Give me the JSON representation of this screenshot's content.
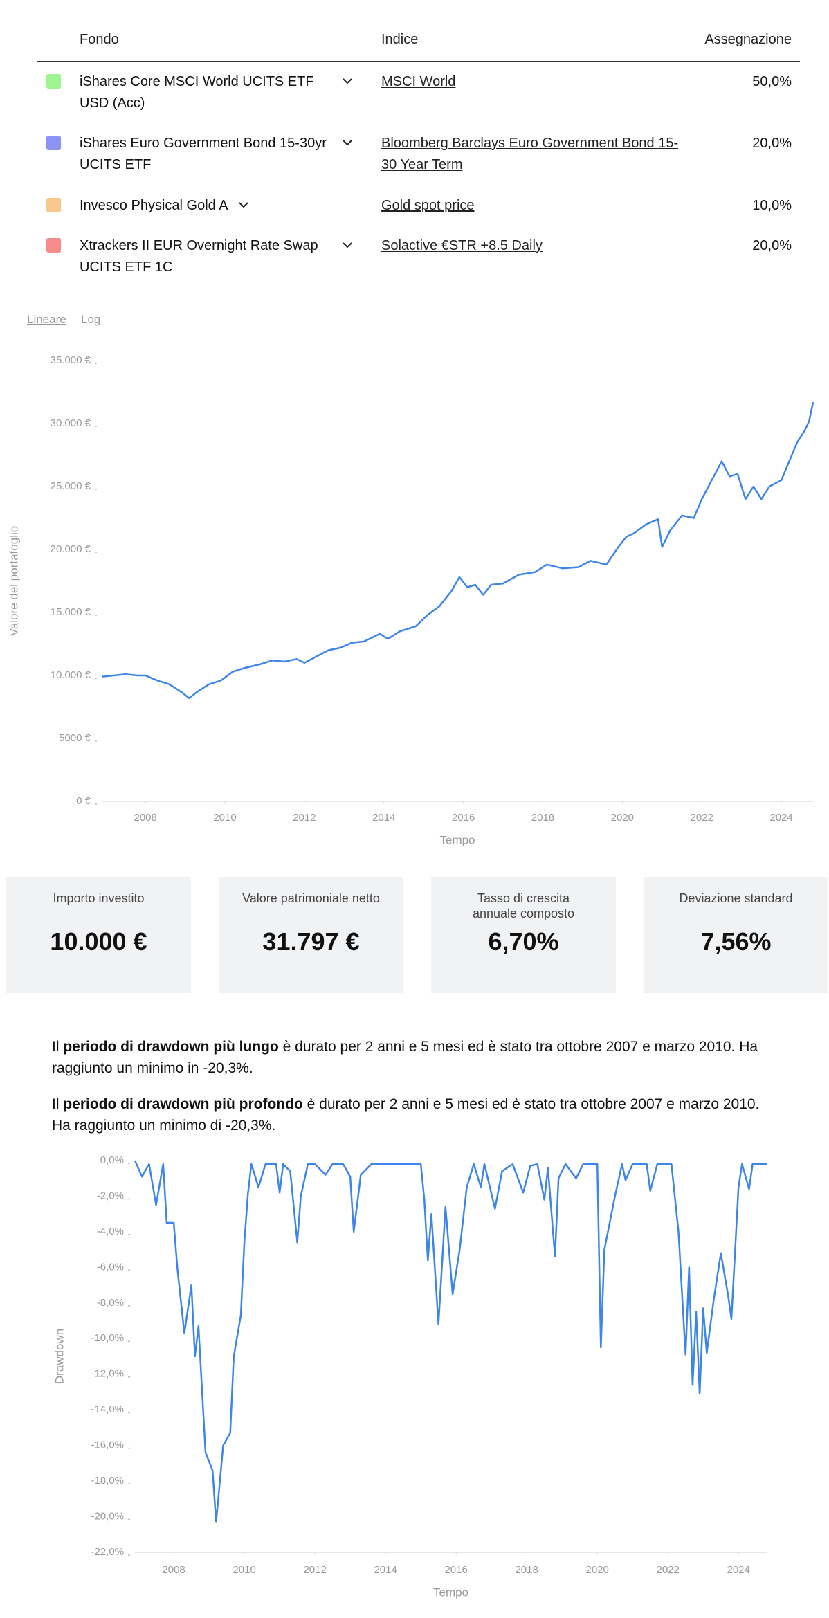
{
  "table": {
    "headers": [
      "Fondo",
      "Indice",
      "Assegnazione"
    ],
    "rows": [
      {
        "color": "#a0f590",
        "fund": "iShares Core MSCI World UCITS ETF USD (Acc)",
        "index": "MSCI World",
        "allocation": "50,0%"
      },
      {
        "color": "#8b93f5",
        "fund": "iShares Euro Government Bond 15-30yr UCITS ETF",
        "index": "Bloomberg Barclays Euro Government Bond 15-30 Year Term",
        "allocation": "20,0%"
      },
      {
        "color": "#f9c68b",
        "fund": "Invesco Physical Gold A",
        "index": "Gold spot price",
        "allocation": "10,0%"
      },
      {
        "color": "#f78a8a",
        "fund": "Xtrackers II EUR Overnight Rate Swap UCITS ETF 1C",
        "index": "Solactive €STR +8.5 Daily",
        "allocation": "20,0%"
      }
    ]
  },
  "scale_toggle": [
    "Lineare",
    "Log"
  ],
  "chart_data": [
    {
      "type": "line",
      "y_label": "Valore del portafoglio",
      "x_label": "Tempo",
      "log": false,
      "grid": false,
      "color": "#3d85e8",
      "x": [
        2006.9,
        2007.2,
        2007.5,
        2007.8,
        2008.0,
        2008.3,
        2008.6,
        2008.9,
        2009.1,
        2009.3,
        2009.6,
        2009.9,
        2010.2,
        2010.5,
        2010.9,
        2011.2,
        2011.5,
        2011.8,
        2012.0,
        2012.3,
        2012.6,
        2012.9,
        2013.2,
        2013.5,
        2013.9,
        2014.1,
        2014.4,
        2014.8,
        2015.1,
        2015.4,
        2015.7,
        2015.9,
        2016.1,
        2016.3,
        2016.5,
        2016.7,
        2017.0,
        2017.4,
        2017.8,
        2018.1,
        2018.5,
        2018.9,
        2019.2,
        2019.6,
        2019.9,
        2020.1,
        2020.3,
        2020.6,
        2020.9,
        2021.0,
        2021.2,
        2021.5,
        2021.8,
        2022.0,
        2022.3,
        2022.5,
        2022.7,
        2022.9,
        2023.1,
        2023.3,
        2023.5,
        2023.7,
        2024.0,
        2024.2,
        2024.4,
        2024.6,
        2024.7,
        2024.8
      ],
      "values": [
        9900,
        10000,
        10100,
        10000,
        10000,
        9600,
        9300,
        8700,
        8200,
        8700,
        9300,
        9600,
        10300,
        10600,
        10900,
        11200,
        11100,
        11300,
        11000,
        11500,
        12000,
        12200,
        12600,
        12700,
        13300,
        12900,
        13500,
        13900,
        14800,
        15500,
        16700,
        17800,
        17000,
        17200,
        16400,
        17200,
        17300,
        18000,
        18200,
        18800,
        18500,
        18600,
        19100,
        18800,
        20200,
        21000,
        21300,
        22000,
        22400,
        20200,
        21500,
        22700,
        22500,
        24000,
        25800,
        27000,
        25800,
        26000,
        24000,
        25000,
        24000,
        25000,
        25500,
        27000,
        28500,
        29500,
        30200,
        31700
      ],
      "xlim": [
        2006.9,
        2024.8
      ],
      "ylim": [
        0,
        35000
      ],
      "xticks": [
        2008,
        2010,
        2012,
        2014,
        2016,
        2018,
        2020,
        2022,
        2024
      ],
      "yticks": [
        {
          "value": 0,
          "label": "0 €"
        },
        {
          "value": 5000,
          "label": "5000 €"
        },
        {
          "value": 10000,
          "label": "10.000 €"
        },
        {
          "value": 15000,
          "label": "15.000 €"
        },
        {
          "value": 20000,
          "label": "20.000 €"
        },
        {
          "value": 25000,
          "label": "25.000 €"
        },
        {
          "value": 30000,
          "label": "30.000 €"
        },
        {
          "value": 35000,
          "label": "35.000 €"
        }
      ]
    },
    {
      "type": "line",
      "y_label": "Drawdown",
      "x_label": "Tempo",
      "grid": false,
      "color": "#3d85e8",
      "x": [
        2006.9,
        2007.1,
        2007.3,
        2007.5,
        2007.7,
        2007.8,
        2008.0,
        2008.1,
        2008.3,
        2008.5,
        2008.6,
        2008.7,
        2008.9,
        2009.1,
        2009.2,
        2009.4,
        2009.6,
        2009.7,
        2009.9,
        2010.0,
        2010.1,
        2010.2,
        2010.4,
        2010.6,
        2010.9,
        2011.0,
        2011.1,
        2011.3,
        2011.5,
        2011.6,
        2011.8,
        2012.0,
        2012.3,
        2012.5,
        2012.8,
        2013.0,
        2013.1,
        2013.3,
        2013.6,
        2015.0,
        2015.1,
        2015.2,
        2015.3,
        2015.5,
        2015.7,
        2015.9,
        2016.1,
        2016.3,
        2016.5,
        2016.7,
        2016.8,
        2017.1,
        2017.3,
        2017.6,
        2017.9,
        2018.1,
        2018.3,
        2018.5,
        2018.6,
        2018.8,
        2018.9,
        2019.1,
        2019.4,
        2019.6,
        2020.0,
        2020.1,
        2020.2,
        2020.5,
        2020.7,
        2020.8,
        2021.0,
        2021.4,
        2021.5,
        2021.7,
        2022.1,
        2022.3,
        2022.5,
        2022.6,
        2022.7,
        2022.8,
        2022.9,
        2023.0,
        2023.1,
        2023.3,
        2023.5,
        2023.7,
        2023.8,
        2024.0,
        2024.1,
        2024.3,
        2024.4,
        2024.8
      ],
      "values": [
        0,
        -0.9,
        -0.2,
        -2.5,
        -0.2,
        -3.5,
        -3.5,
        -6,
        -9.7,
        -7,
        -11,
        -9.3,
        -16.4,
        -17.4,
        -20.3,
        -16,
        -15.3,
        -11,
        -8.7,
        -4.6,
        -1.9,
        -0.2,
        -1.5,
        -0.2,
        -0.2,
        -1.8,
        -0.2,
        -0.6,
        -4.6,
        -2,
        -0.2,
        -0.2,
        -0.8,
        -0.2,
        -0.2,
        -0.9,
        -4,
        -0.8,
        -0.2,
        -0.2,
        -2.2,
        -5.6,
        -3,
        -9.2,
        -2.6,
        -7.5,
        -5,
        -1.5,
        -0.2,
        -1.5,
        -0.2,
        -2.7,
        -0.6,
        -0.2,
        -1.8,
        -0.3,
        -0.2,
        -2.2,
        -0.4,
        -5.4,
        -1,
        -0.2,
        -1,
        -0.2,
        -0.2,
        -10.5,
        -5,
        -2,
        -0.2,
        -1.1,
        -0.2,
        -0.2,
        -1.7,
        -0.2,
        -0.2,
        -4,
        -10.9,
        -6,
        -12.6,
        -8.5,
        -13.1,
        -8.3,
        -10.8,
        -7.8,
        -5.2,
        -7.5,
        -8.9,
        -1.5,
        -0.2,
        -1.6,
        -0.2,
        -0.2
      ],
      "xlim": [
        2006.9,
        2024.8
      ],
      "ylim": [
        -22,
        0
      ],
      "xticks": [
        2008,
        2010,
        2012,
        2014,
        2016,
        2018,
        2020,
        2022,
        2024
      ],
      "yticks": [
        {
          "value": 0,
          "label": "0,0%"
        },
        {
          "value": -2,
          "label": "-2,0%"
        },
        {
          "value": -4,
          "label": "-4,0%"
        },
        {
          "value": -6,
          "label": "-6,0%"
        },
        {
          "value": -8,
          "label": "-8,0%"
        },
        {
          "value": -10,
          "label": "-10,0%"
        },
        {
          "value": -12,
          "label": "-12,0%"
        },
        {
          "value": -14,
          "label": "-14,0%"
        },
        {
          "value": -16,
          "label": "-16,0%"
        },
        {
          "value": -18,
          "label": "-18,0%"
        },
        {
          "value": -20,
          "label": "-20,0%"
        },
        {
          "value": -22,
          "label": "-22,0%"
        }
      ]
    }
  ],
  "stats": [
    {
      "label": "Importo investito",
      "value": "10.000 €"
    },
    {
      "label": "Valore patrimoniale netto",
      "value": "31.797 €"
    },
    {
      "label": "Tasso di crescita annuale composto",
      "value": "6,70%"
    },
    {
      "label": "Deviazione standard",
      "value": "7,56%"
    }
  ],
  "paragraphs": [
    {
      "before": "Il ",
      "bold": "periodo di drawdown più lungo",
      "after": " è durato per 2 anni e 5 mesi ed è stato tra ottobre 2007 e marzo 2010. Ha raggiunto un minimo in -20,3%."
    },
    {
      "before": "Il ",
      "bold": "periodo di drawdown più profondo",
      "after": " è durato per 2 anni e 5 mesi ed è stato tra ottobre 2007 e marzo 2010. Ha raggiunto un minimo di -20,3%."
    }
  ]
}
